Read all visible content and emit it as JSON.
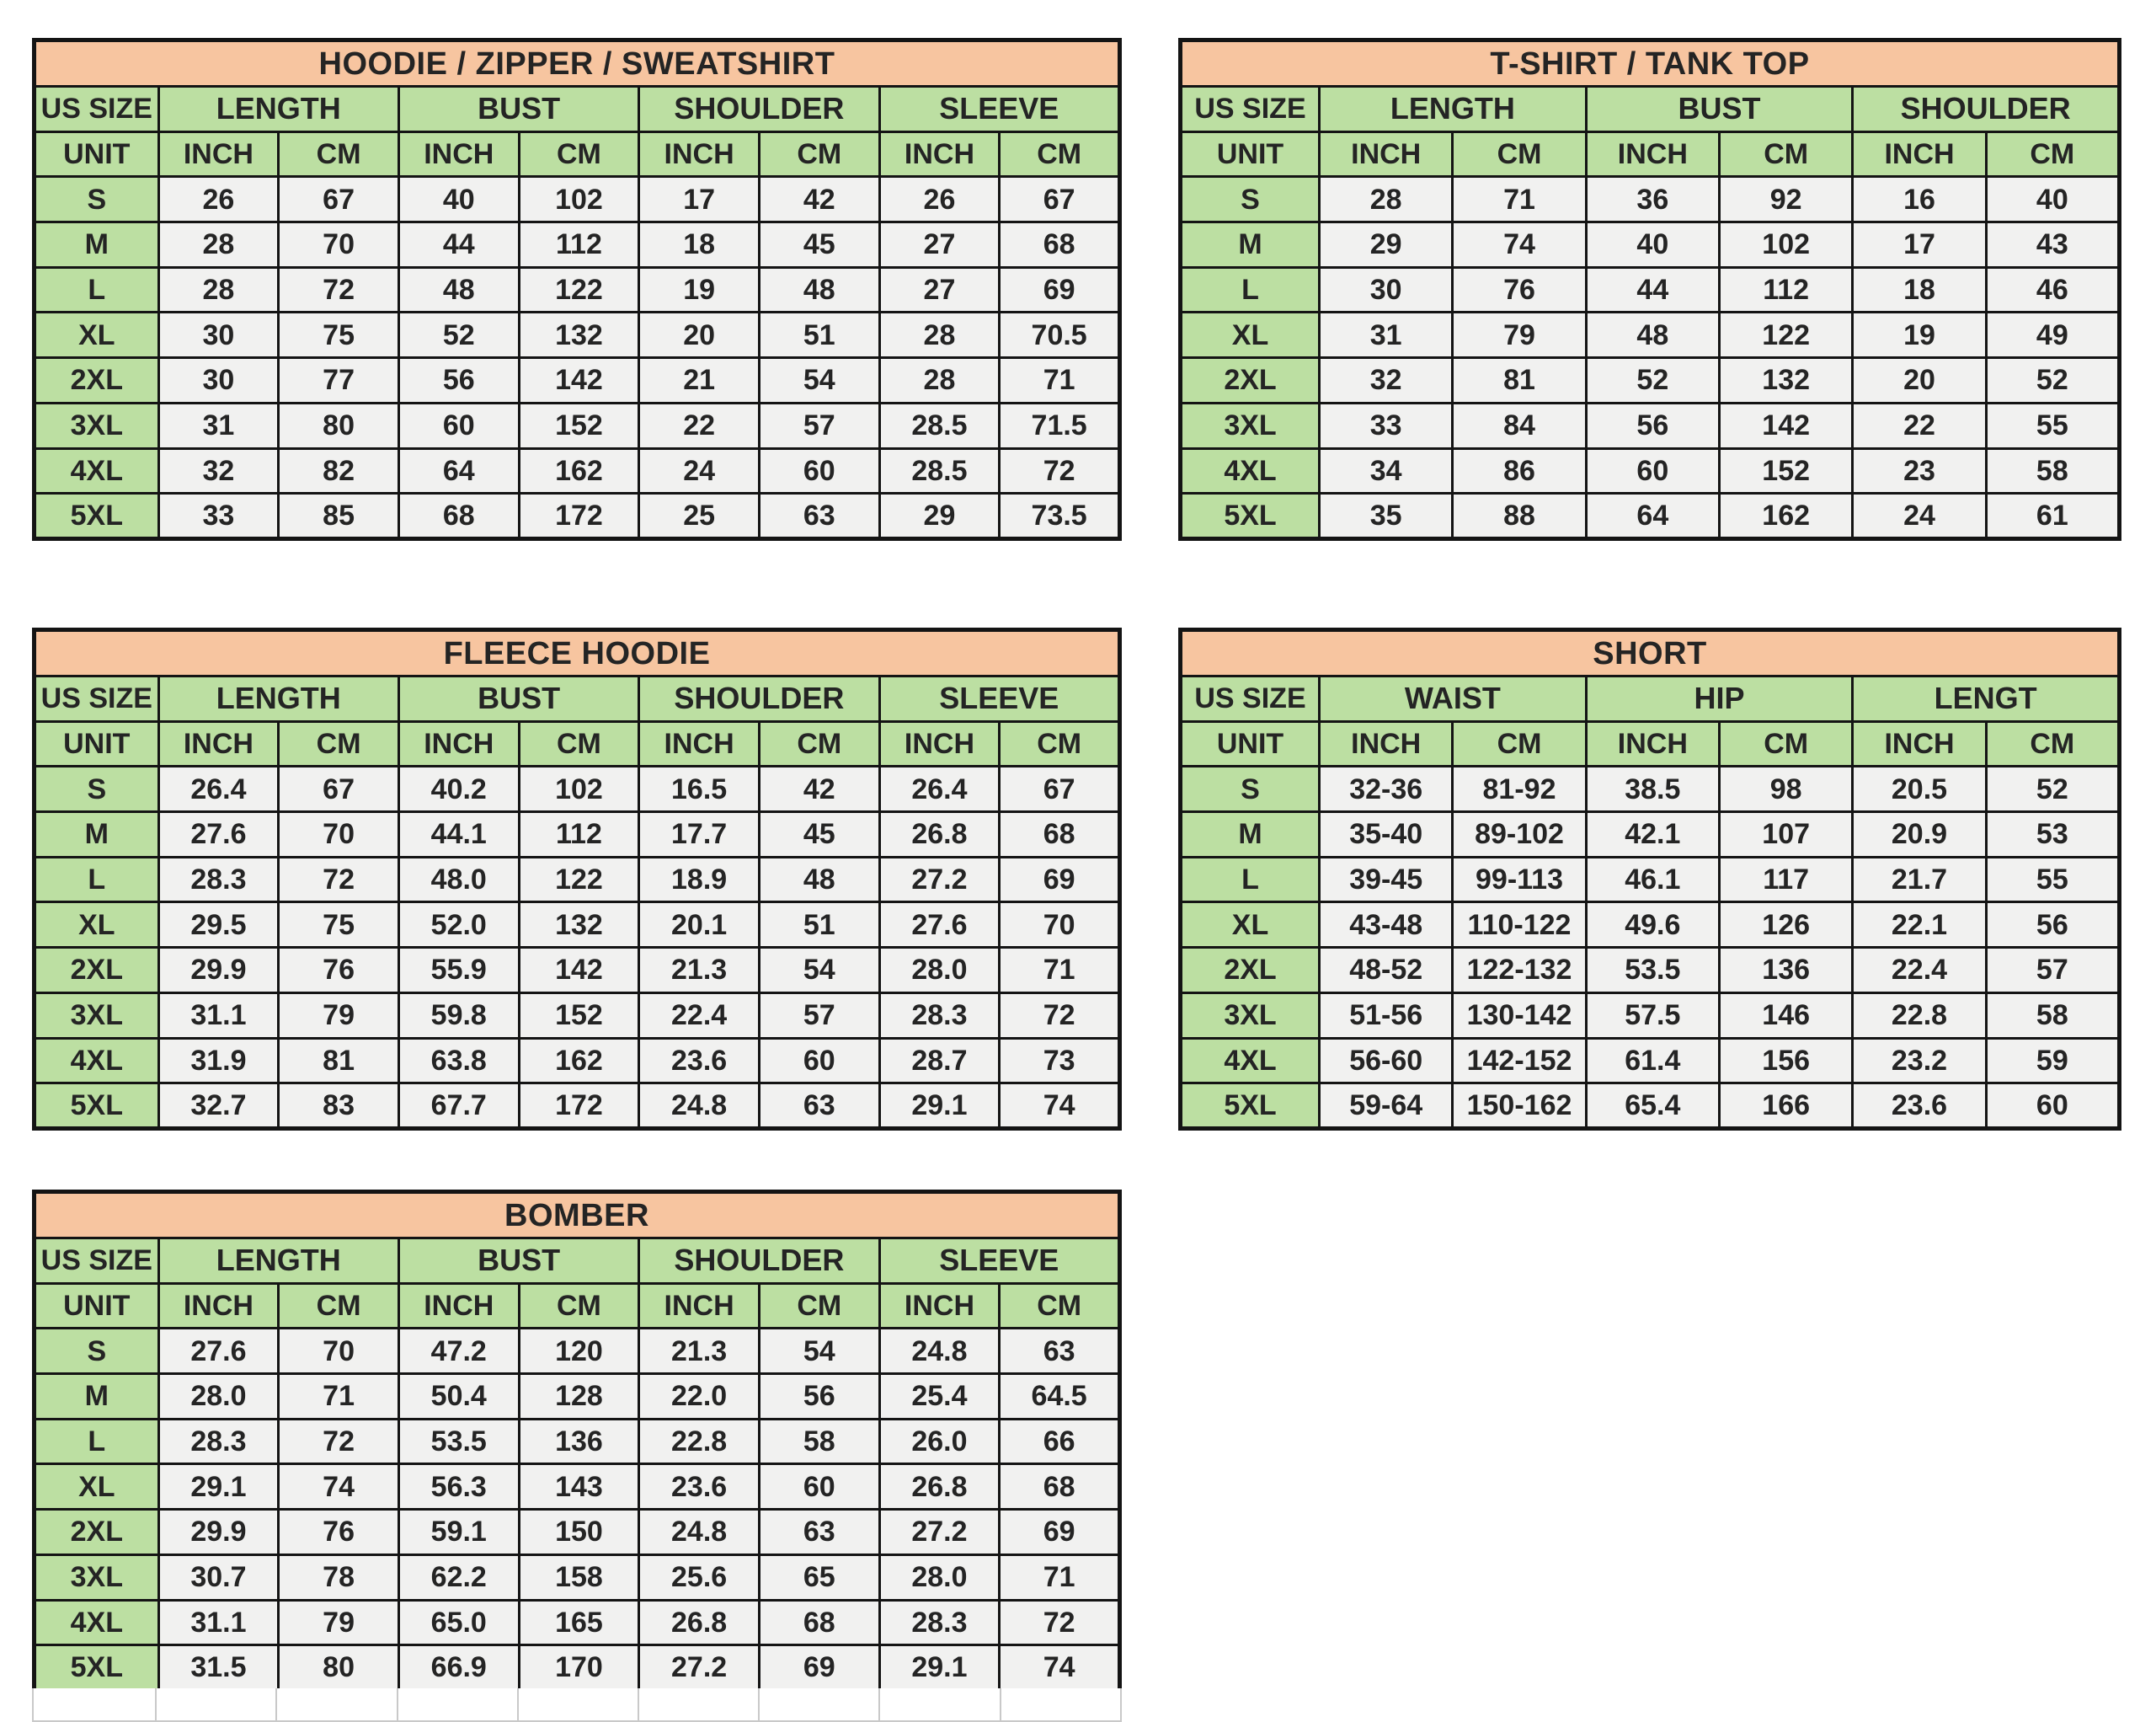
{
  "colors": {
    "title_bg": "#F7C5A0",
    "header_bg": "#BCDFA2",
    "cell_bg": "#F1F1F0",
    "border": "#141414",
    "light_border": "#C9C9C9",
    "text": "#242424",
    "page_bg": "#FFFFFF"
  },
  "tables": [
    {
      "title": "HOODIE / ZIPPER / SWEATSHIRT",
      "size_header": "US SIZE",
      "unit_header": "UNIT",
      "column_groups": [
        "LENGTH",
        "BUST",
        "SHOULDER",
        "SLEEVE"
      ],
      "unit_row": [
        "INCH",
        "CM",
        "INCH",
        "CM",
        "INCH",
        "CM",
        "INCH",
        "CM"
      ],
      "rows": [
        {
          "size": "S",
          "values": [
            "26",
            "67",
            "40",
            "102",
            "17",
            "42",
            "26",
            "67"
          ]
        },
        {
          "size": "M",
          "values": [
            "28",
            "70",
            "44",
            "112",
            "18",
            "45",
            "27",
            "68"
          ]
        },
        {
          "size": "L",
          "values": [
            "28",
            "72",
            "48",
            "122",
            "19",
            "48",
            "27",
            "69"
          ]
        },
        {
          "size": "XL",
          "values": [
            "30",
            "75",
            "52",
            "132",
            "20",
            "51",
            "28",
            "70.5"
          ]
        },
        {
          "size": "2XL",
          "values": [
            "30",
            "77",
            "56",
            "142",
            "21",
            "54",
            "28",
            "71"
          ]
        },
        {
          "size": "3XL",
          "values": [
            "31",
            "80",
            "60",
            "152",
            "22",
            "57",
            "28.5",
            "71.5"
          ]
        },
        {
          "size": "4XL",
          "values": [
            "32",
            "82",
            "64",
            "162",
            "24",
            "60",
            "28.5",
            "72"
          ]
        },
        {
          "size": "5XL",
          "values": [
            "33",
            "85",
            "68",
            "172",
            "25",
            "63",
            "29",
            "73.5"
          ]
        }
      ],
      "has_trailing_blank_row": false
    },
    {
      "title": "T-SHIRT / TANK TOP",
      "size_header": "US SIZE",
      "unit_header": "UNIT",
      "column_groups": [
        "LENGTH",
        "BUST",
        "SHOULDER"
      ],
      "unit_row": [
        "INCH",
        "CM",
        "INCH",
        "CM",
        "INCH",
        "CM"
      ],
      "rows": [
        {
          "size": "S",
          "values": [
            "28",
            "71",
            "36",
            "92",
            "16",
            "40"
          ]
        },
        {
          "size": "M",
          "values": [
            "29",
            "74",
            "40",
            "102",
            "17",
            "43"
          ]
        },
        {
          "size": "L",
          "values": [
            "30",
            "76",
            "44",
            "112",
            "18",
            "46"
          ]
        },
        {
          "size": "XL",
          "values": [
            "31",
            "79",
            "48",
            "122",
            "19",
            "49"
          ]
        },
        {
          "size": "2XL",
          "values": [
            "32",
            "81",
            "52",
            "132",
            "20",
            "52"
          ]
        },
        {
          "size": "3XL",
          "values": [
            "33",
            "84",
            "56",
            "142",
            "22",
            "55"
          ]
        },
        {
          "size": "4XL",
          "values": [
            "34",
            "86",
            "60",
            "152",
            "23",
            "58"
          ]
        },
        {
          "size": "5XL",
          "values": [
            "35",
            "88",
            "64",
            "162",
            "24",
            "61"
          ]
        }
      ],
      "has_trailing_blank_row": false
    },
    {
      "title": "FLEECE HOODIE",
      "size_header": "US SIZE",
      "unit_header": "UNIT",
      "column_groups": [
        "LENGTH",
        "BUST",
        "SHOULDER",
        "SLEEVE"
      ],
      "unit_row": [
        "INCH",
        "CM",
        "INCH",
        "CM",
        "INCH",
        "CM",
        "INCH",
        "CM"
      ],
      "rows": [
        {
          "size": "S",
          "values": [
            "26.4",
            "67",
            "40.2",
            "102",
            "16.5",
            "42",
            "26.4",
            "67"
          ]
        },
        {
          "size": "M",
          "values": [
            "27.6",
            "70",
            "44.1",
            "112",
            "17.7",
            "45",
            "26.8",
            "68"
          ]
        },
        {
          "size": "L",
          "values": [
            "28.3",
            "72",
            "48.0",
            "122",
            "18.9",
            "48",
            "27.2",
            "69"
          ]
        },
        {
          "size": "XL",
          "values": [
            "29.5",
            "75",
            "52.0",
            "132",
            "20.1",
            "51",
            "27.6",
            "70"
          ]
        },
        {
          "size": "2XL",
          "values": [
            "29.9",
            "76",
            "55.9",
            "142",
            "21.3",
            "54",
            "28.0",
            "71"
          ]
        },
        {
          "size": "3XL",
          "values": [
            "31.1",
            "79",
            "59.8",
            "152",
            "22.4",
            "57",
            "28.3",
            "72"
          ]
        },
        {
          "size": "4XL",
          "values": [
            "31.9",
            "81",
            "63.8",
            "162",
            "23.6",
            "60",
            "28.7",
            "73"
          ]
        },
        {
          "size": "5XL",
          "values": [
            "32.7",
            "83",
            "67.7",
            "172",
            "24.8",
            "63",
            "29.1",
            "74"
          ]
        }
      ],
      "has_trailing_blank_row": false
    },
    {
      "title": "SHORT",
      "size_header": "US SIZE",
      "unit_header": "UNIT",
      "column_groups": [
        "WAIST",
        "HIP",
        "LENGT"
      ],
      "unit_row": [
        "INCH",
        "CM",
        "INCH",
        "CM",
        "INCH",
        "CM"
      ],
      "rows": [
        {
          "size": "S",
          "values": [
            "32-36",
            "81-92",
            "38.5",
            "98",
            "20.5",
            "52"
          ]
        },
        {
          "size": "M",
          "values": [
            "35-40",
            "89-102",
            "42.1",
            "107",
            "20.9",
            "53"
          ]
        },
        {
          "size": "L",
          "values": [
            "39-45",
            "99-113",
            "46.1",
            "117",
            "21.7",
            "55"
          ]
        },
        {
          "size": "XL",
          "values": [
            "43-48",
            "110-122",
            "49.6",
            "126",
            "22.1",
            "56"
          ]
        },
        {
          "size": "2XL",
          "values": [
            "48-52",
            "122-132",
            "53.5",
            "136",
            "22.4",
            "57"
          ]
        },
        {
          "size": "3XL",
          "values": [
            "51-56",
            "130-142",
            "57.5",
            "146",
            "22.8",
            "58"
          ]
        },
        {
          "size": "4XL",
          "values": [
            "56-60",
            "142-152",
            "61.4",
            "156",
            "23.2",
            "59"
          ]
        },
        {
          "size": "5XL",
          "values": [
            "59-64",
            "150-162",
            "65.4",
            "166",
            "23.6",
            "60"
          ]
        }
      ],
      "has_trailing_blank_row": false
    },
    {
      "title": "BOMBER",
      "size_header": "US SIZE",
      "unit_header": "UNIT",
      "column_groups": [
        "LENGTH",
        "BUST",
        "SHOULDER",
        "SLEEVE"
      ],
      "unit_row": [
        "INCH",
        "CM",
        "INCH",
        "CM",
        "INCH",
        "CM",
        "INCH",
        "CM"
      ],
      "rows": [
        {
          "size": "S",
          "values": [
            "27.6",
            "70",
            "47.2",
            "120",
            "21.3",
            "54",
            "24.8",
            "63"
          ]
        },
        {
          "size": "M",
          "values": [
            "28.0",
            "71",
            "50.4",
            "128",
            "22.0",
            "56",
            "25.4",
            "64.5"
          ]
        },
        {
          "size": "L",
          "values": [
            "28.3",
            "72",
            "53.5",
            "136",
            "22.8",
            "58",
            "26.0",
            "66"
          ]
        },
        {
          "size": "XL",
          "values": [
            "29.1",
            "74",
            "56.3",
            "143",
            "23.6",
            "60",
            "26.8",
            "68"
          ]
        },
        {
          "size": "2XL",
          "values": [
            "29.9",
            "76",
            "59.1",
            "150",
            "24.8",
            "63",
            "27.2",
            "69"
          ]
        },
        {
          "size": "3XL",
          "values": [
            "30.7",
            "78",
            "62.2",
            "158",
            "25.6",
            "65",
            "28.0",
            "71"
          ]
        },
        {
          "size": "4XL",
          "values": [
            "31.1",
            "79",
            "65.0",
            "165",
            "26.8",
            "68",
            "28.3",
            "72"
          ]
        },
        {
          "size": "5XL",
          "values": [
            "31.5",
            "80",
            "66.9",
            "170",
            "27.2",
            "69",
            "29.1",
            "74"
          ]
        }
      ],
      "has_trailing_blank_row": true
    }
  ]
}
